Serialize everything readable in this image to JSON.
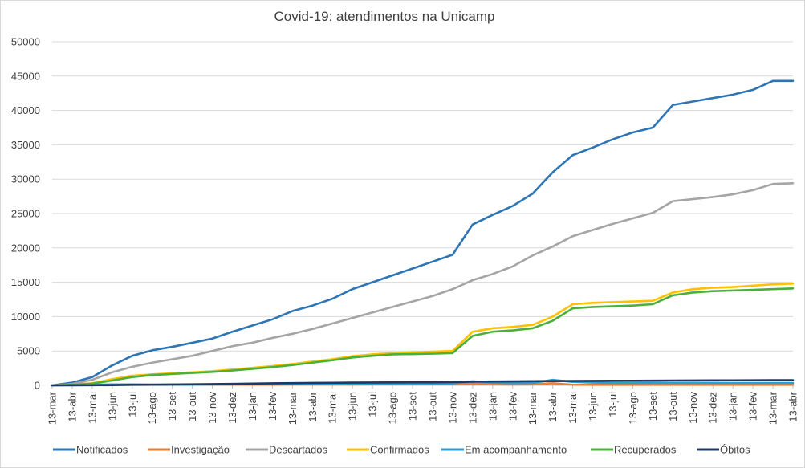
{
  "chart_data": {
    "type": "line",
    "title": "Covid-19: atendimentos  na Unicamp",
    "xlabel": "",
    "ylabel": "",
    "ylim": [
      0,
      50000
    ],
    "yticks": [
      0,
      5000,
      10000,
      15000,
      20000,
      25000,
      30000,
      35000,
      40000,
      45000,
      50000
    ],
    "ytick_labels": [
      "0",
      "5000",
      "10000",
      "15000",
      "20000",
      "25000",
      "30000",
      "35000",
      "40000",
      "45000",
      "50000"
    ],
    "categories": [
      "13-mar",
      "13-abr",
      "13-mai",
      "13-jun",
      "13-jul",
      "13-ago",
      "13-set",
      "13-out",
      "13-nov",
      "13-dez",
      "13-jan",
      "13-fev",
      "13-mar",
      "13-abr",
      "13-mai",
      "13-jun",
      "13-jul",
      "13-ago",
      "13-set",
      "13-out",
      "13-nov",
      "13-dez",
      "13-jan",
      "13-fev",
      "13-mar",
      "13-abr",
      "13-mai",
      "13-jun",
      "13-jul",
      "13-ago",
      "13-set",
      "13-out",
      "13-nov",
      "13-dez",
      "13-jan",
      "13-fev",
      "13-mar",
      "13-abr"
    ],
    "grid": "horizontal",
    "legend_position": "bottom",
    "series": [
      {
        "name": "Notificados",
        "color": "#2e75b6",
        "values": [
          0,
          400,
          1200,
          2900,
          4300,
          5100,
          5600,
          6200,
          6800,
          7800,
          8700,
          9600,
          10800,
          11600,
          12600,
          14000,
          15000,
          16000,
          17000,
          18000,
          19000,
          23400,
          24800,
          26100,
          27900,
          31000,
          33500,
          34600,
          35800,
          36800,
          37500,
          40800,
          41300,
          41800,
          42300,
          43000,
          44300,
          44300
        ]
      },
      {
        "name": "Investigação",
        "color": "#ed7d31",
        "values": [
          0,
          80,
          100,
          120,
          150,
          100,
          90,
          100,
          100,
          100,
          100,
          100,
          120,
          130,
          120,
          130,
          150,
          150,
          150,
          150,
          150,
          250,
          150,
          120,
          150,
          300,
          100,
          80,
          80,
          80,
          80,
          80,
          80,
          80,
          80,
          80,
          80,
          80
        ]
      },
      {
        "name": "Descartados",
        "color": "#a5a5a5",
        "values": [
          0,
          200,
          800,
          1900,
          2700,
          3300,
          3800,
          4300,
          5000,
          5700,
          6200,
          6900,
          7500,
          8200,
          9000,
          9800,
          10600,
          11400,
          12200,
          13000,
          14000,
          15300,
          16200,
          17300,
          18900,
          20200,
          21700,
          22600,
          23500,
          24300,
          25100,
          26800,
          27100,
          27400,
          27800,
          28400,
          29300,
          29400
        ]
      },
      {
        "name": "Confirmados",
        "color": "#ffc000",
        "values": [
          0,
          100,
          300,
          900,
          1400,
          1600,
          1750,
          1900,
          2050,
          2300,
          2550,
          2800,
          3100,
          3450,
          3800,
          4250,
          4500,
          4700,
          4800,
          4900,
          5000,
          7800,
          8300,
          8500,
          8800,
          10000,
          11800,
          12000,
          12100,
          12200,
          12300,
          13500,
          14000,
          14200,
          14300,
          14500,
          14700,
          14800
        ]
      },
      {
        "name": "Em acompanhamento",
        "color": "#2a9fd6",
        "values": [
          0,
          50,
          80,
          120,
          100,
          90,
          100,
          100,
          120,
          140,
          160,
          180,
          200,
          200,
          210,
          220,
          230,
          240,
          250,
          260,
          270,
          600,
          400,
          300,
          350,
          800,
          500,
          400,
          350,
          350,
          350,
          350,
          350,
          350,
          350,
          350,
          350,
          350
        ]
      },
      {
        "name": "Recuperados",
        "color": "#4caf3c",
        "values": [
          0,
          80,
          250,
          700,
          1200,
          1500,
          1650,
          1800,
          1950,
          2150,
          2400,
          2650,
          2950,
          3300,
          3650,
          4050,
          4300,
          4500,
          4550,
          4600,
          4700,
          7200,
          7800,
          8000,
          8300,
          9400,
          11200,
          11400,
          11500,
          11600,
          11800,
          13100,
          13500,
          13700,
          13800,
          13900,
          14000,
          14100
        ]
      },
      {
        "name": "Óbitos",
        "color": "#1f3864",
        "values": [
          0,
          5,
          15,
          40,
          80,
          100,
          120,
          150,
          180,
          220,
          260,
          300,
          330,
          360,
          380,
          400,
          420,
          430,
          440,
          450,
          470,
          530,
          560,
          580,
          600,
          620,
          640,
          650,
          660,
          670,
          680,
          700,
          710,
          720,
          730,
          740,
          760,
          760
        ]
      }
    ]
  }
}
